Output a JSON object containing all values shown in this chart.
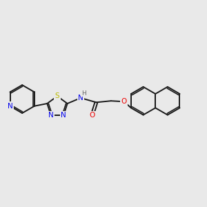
{
  "background_color": "#e9e9e9",
  "bond_color": "#1a1a1a",
  "bond_width": 1.4,
  "atom_colors": {
    "N": "#0000ee",
    "O": "#ee0000",
    "S": "#bbbb00",
    "H": "#666666",
    "C": "#1a1a1a"
  },
  "font_size": 7.5,
  "fig_width": 3.0,
  "fig_height": 3.0,
  "dpi": 100,
  "xlim": [
    0,
    14
  ],
  "ylim": [
    0,
    10
  ]
}
